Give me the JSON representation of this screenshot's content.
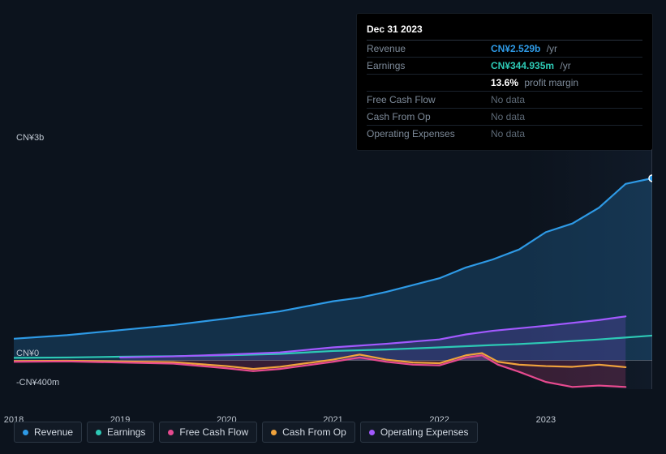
{
  "tooltip": {
    "date": "Dec 31 2023",
    "rows": [
      {
        "k": "Revenue",
        "value": "CN¥2.529b",
        "suffix": "/yr",
        "cls": "rev"
      },
      {
        "k": "Earnings",
        "value": "CN¥344.935m",
        "suffix": "/yr",
        "cls": "earn"
      },
      {
        "k": "",
        "value": "13.6%",
        "suffix": "profit margin",
        "cls": "pm"
      },
      {
        "k": "Free Cash Flow",
        "value": "No data",
        "suffix": "",
        "cls": "nodata"
      },
      {
        "k": "Cash From Op",
        "value": "No data",
        "suffix": "",
        "cls": "nodata"
      },
      {
        "k": "Operating Expenses",
        "value": "No data",
        "suffix": "",
        "cls": "nodata"
      }
    ]
  },
  "chart": {
    "y_axis": {
      "min": -400,
      "max": 3000,
      "unit": "CN¥m"
    },
    "y_ticks": [
      {
        "v": 3000,
        "label": "CN¥3b"
      },
      {
        "v": 0,
        "label": "CN¥0"
      },
      {
        "v": -400,
        "label": "-CN¥400m"
      }
    ],
    "x_axis": {
      "min": 2018.0,
      "max": 2024.0
    },
    "x_ticks": [
      {
        "v": 2018,
        "label": "2018"
      },
      {
        "v": 2019,
        "label": "2019"
      },
      {
        "v": 2020,
        "label": "2020"
      },
      {
        "v": 2021,
        "label": "2021"
      },
      {
        "v": 2022,
        "label": "2022"
      },
      {
        "v": 2023,
        "label": "2023"
      }
    ],
    "hover_x": 2024.0,
    "plot_bg": "#0c131d",
    "grid_color": "#1a222d",
    "line_width": 2.2,
    "series": [
      {
        "name": "Revenue",
        "color": "#2e9ae6",
        "fill": "rgba(46,154,230,0.22)",
        "zero_fill": true,
        "data": [
          [
            2018.0,
            300
          ],
          [
            2018.5,
            350
          ],
          [
            2019.0,
            420
          ],
          [
            2019.5,
            490
          ],
          [
            2020.0,
            580
          ],
          [
            2020.5,
            680
          ],
          [
            2021.0,
            820
          ],
          [
            2021.25,
            870
          ],
          [
            2021.5,
            950
          ],
          [
            2022.0,
            1140
          ],
          [
            2022.25,
            1290
          ],
          [
            2022.5,
            1400
          ],
          [
            2022.75,
            1540
          ],
          [
            2023.0,
            1780
          ],
          [
            2023.25,
            1900
          ],
          [
            2023.5,
            2120
          ],
          [
            2023.75,
            2450
          ],
          [
            2024.0,
            2529
          ]
        ]
      },
      {
        "name": "Earnings",
        "color": "#2dc9b5",
        "fill": null,
        "data": [
          [
            2018.0,
            35
          ],
          [
            2018.5,
            40
          ],
          [
            2019.0,
            50
          ],
          [
            2019.5,
            58
          ],
          [
            2020.0,
            70
          ],
          [
            2020.5,
            90
          ],
          [
            2021.0,
            130
          ],
          [
            2021.5,
            150
          ],
          [
            2022.0,
            180
          ],
          [
            2022.5,
            212
          ],
          [
            2022.75,
            226
          ],
          [
            2023.0,
            245
          ],
          [
            2023.5,
            290
          ],
          [
            2024.0,
            344
          ]
        ]
      },
      {
        "name": "Operating Expenses",
        "color": "#a259ff",
        "fill": "rgba(162,89,255,0.18)",
        "zero_fill": true,
        "data": [
          [
            2019.0,
            40
          ],
          [
            2019.5,
            55
          ],
          [
            2020.0,
            80
          ],
          [
            2020.5,
            110
          ],
          [
            2021.0,
            180
          ],
          [
            2021.5,
            230
          ],
          [
            2022.0,
            290
          ],
          [
            2022.25,
            360
          ],
          [
            2022.5,
            410
          ],
          [
            2023.0,
            480
          ],
          [
            2023.5,
            560
          ],
          [
            2023.75,
            610
          ]
        ]
      },
      {
        "name": "Cash From Op",
        "color": "#f0a33c",
        "fill": null,
        "data": [
          [
            2018.0,
            -10
          ],
          [
            2018.5,
            -5
          ],
          [
            2019.0,
            -15
          ],
          [
            2019.5,
            -25
          ],
          [
            2020.0,
            -80
          ],
          [
            2020.25,
            -120
          ],
          [
            2020.5,
            -90
          ],
          [
            2020.75,
            -40
          ],
          [
            2021.0,
            10
          ],
          [
            2021.25,
            80
          ],
          [
            2021.5,
            10
          ],
          [
            2021.75,
            -30
          ],
          [
            2022.0,
            -40
          ],
          [
            2022.25,
            70
          ],
          [
            2022.4,
            100
          ],
          [
            2022.55,
            -20
          ],
          [
            2022.75,
            -60
          ],
          [
            2023.0,
            -80
          ],
          [
            2023.25,
            -90
          ],
          [
            2023.5,
            -60
          ],
          [
            2023.75,
            -95
          ]
        ]
      },
      {
        "name": "Free Cash Flow",
        "color": "#e64a8f",
        "fill": "rgba(230,74,143,0.20)",
        "zero_fill": true,
        "data": [
          [
            2018.0,
            -20
          ],
          [
            2018.5,
            -15
          ],
          [
            2019.0,
            -30
          ],
          [
            2019.5,
            -45
          ],
          [
            2020.0,
            -110
          ],
          [
            2020.25,
            -150
          ],
          [
            2020.5,
            -120
          ],
          [
            2020.75,
            -70
          ],
          [
            2021.0,
            -20
          ],
          [
            2021.25,
            40
          ],
          [
            2021.5,
            -20
          ],
          [
            2021.75,
            -60
          ],
          [
            2022.0,
            -70
          ],
          [
            2022.25,
            40
          ],
          [
            2022.4,
            70
          ],
          [
            2022.55,
            -60
          ],
          [
            2022.75,
            -160
          ],
          [
            2023.0,
            -300
          ],
          [
            2023.25,
            -370
          ],
          [
            2023.5,
            -350
          ],
          [
            2023.75,
            -370
          ]
        ]
      }
    ],
    "legend": [
      {
        "label": "Revenue",
        "color": "#2e9ae6"
      },
      {
        "label": "Earnings",
        "color": "#2dc9b5"
      },
      {
        "label": "Free Cash Flow",
        "color": "#e64a8f"
      },
      {
        "label": "Cash From Op",
        "color": "#f0a33c"
      },
      {
        "label": "Operating Expenses",
        "color": "#a259ff"
      }
    ]
  }
}
